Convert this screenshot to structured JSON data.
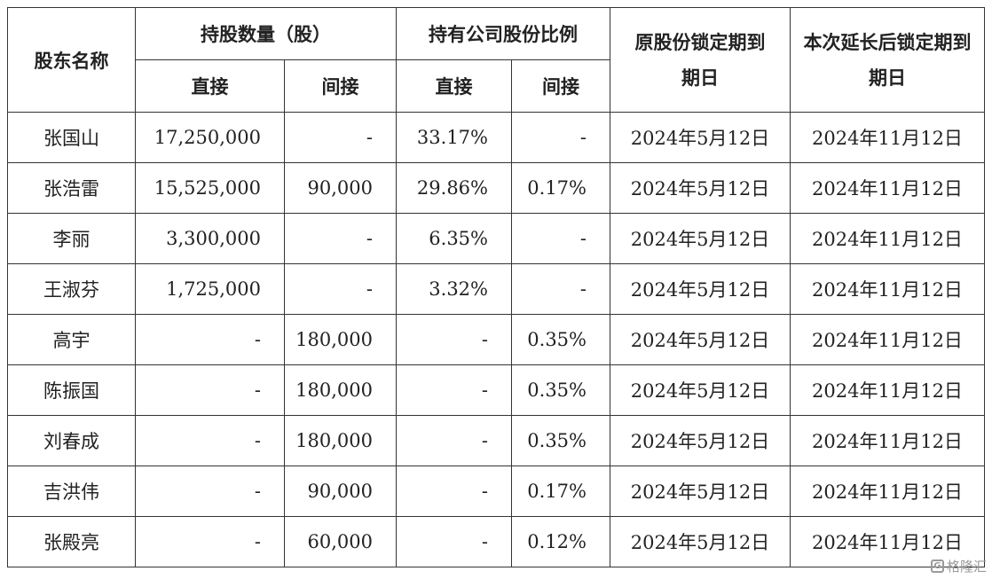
{
  "header": {
    "shareholder_name": "股东名称",
    "shares_held": "持股数量（股）",
    "share_ratio": "持有公司股份比例",
    "original_lock": "原股份锁定期到期日",
    "extended_lock": "本次延长后锁定期到期日",
    "direct": "直接",
    "indirect": "间接"
  },
  "rows": [
    {
      "name": "张国山",
      "direct_shares": "17,250,000",
      "indirect_shares": "-",
      "direct_ratio": "33.17%",
      "indirect_ratio": "-",
      "original_date": "2024年5月12日",
      "extended_date": "2024年11月12日"
    },
    {
      "name": "张浩雷",
      "direct_shares": "15,525,000",
      "indirect_shares": "90,000",
      "direct_ratio": "29.86%",
      "indirect_ratio": "0.17%",
      "original_date": "2024年5月12日",
      "extended_date": "2024年11月12日"
    },
    {
      "name": "李丽",
      "direct_shares": "3,300,000",
      "indirect_shares": "-",
      "direct_ratio": "6.35%",
      "indirect_ratio": "-",
      "original_date": "2024年5月12日",
      "extended_date": "2024年11月12日"
    },
    {
      "name": "王淑芬",
      "direct_shares": "1,725,000",
      "indirect_shares": "-",
      "direct_ratio": "3.32%",
      "indirect_ratio": "-",
      "original_date": "2024年5月12日",
      "extended_date": "2024年11月12日"
    },
    {
      "name": "高宇",
      "direct_shares": "-",
      "indirect_shares": "180,000",
      "direct_ratio": "-",
      "indirect_ratio": "0.35%",
      "original_date": "2024年5月12日",
      "extended_date": "2024年11月12日"
    },
    {
      "name": "陈振国",
      "direct_shares": "-",
      "indirect_shares": "180,000",
      "direct_ratio": "-",
      "indirect_ratio": "0.35%",
      "original_date": "2024年5月12日",
      "extended_date": "2024年11月12日"
    },
    {
      "name": "刘春成",
      "direct_shares": "-",
      "indirect_shares": "180,000",
      "direct_ratio": "-",
      "indirect_ratio": "0.35%",
      "original_date": "2024年5月12日",
      "extended_date": "2024年11月12日"
    },
    {
      "name": "吉洪伟",
      "direct_shares": "-",
      "indirect_shares": "90,000",
      "direct_ratio": "-",
      "indirect_ratio": "0.17%",
      "original_date": "2024年5月12日",
      "extended_date": "2024年11月12日"
    },
    {
      "name": "张殿亮",
      "direct_shares": "-",
      "indirect_shares": "60,000",
      "direct_ratio": "-",
      "indirect_ratio": "0.12%",
      "original_date": "2024年5月12日",
      "extended_date": "2024年11月12日"
    }
  ],
  "watermark": {
    "icon": "gelonghui-logo-icon",
    "text": "格隆汇"
  }
}
